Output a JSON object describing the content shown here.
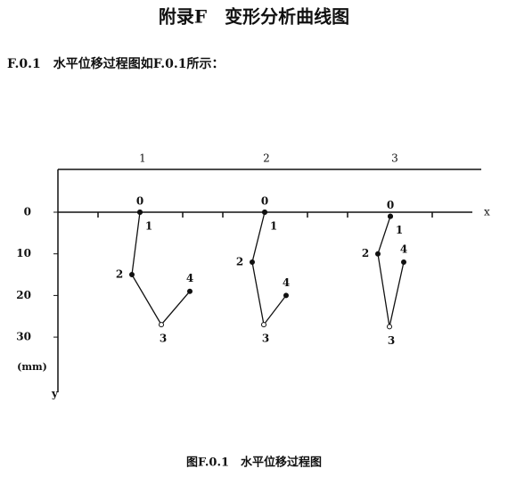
{
  "header": {
    "title": "附录F　变形分析曲线图"
  },
  "section": {
    "text": "F.0.1　水平位移过程图如F.0.1所示："
  },
  "figure": {
    "x_label": "x",
    "y_label": "y",
    "unit": "(mm)",
    "yticks": [
      0,
      10,
      20,
      30
    ],
    "groups": [
      {
        "label": "1",
        "points": [
          {
            "label": "0",
            "y": 0
          },
          {
            "label": "1",
            "y": 0
          },
          {
            "label": "2",
            "y": 15
          },
          {
            "label": "3",
            "y": 27
          },
          {
            "label": "4",
            "y": 19
          }
        ]
      },
      {
        "label": "2",
        "points": [
          {
            "label": "0",
            "y": 0
          },
          {
            "label": "1",
            "y": 0
          },
          {
            "label": "2",
            "y": 12
          },
          {
            "label": "3",
            "y": 27
          },
          {
            "label": "4",
            "y": 20
          }
        ]
      },
      {
        "label": "3",
        "points": [
          {
            "label": "0",
            "y": 1
          },
          {
            "label": "1",
            "y": 1
          },
          {
            "label": "2",
            "y": 10
          },
          {
            "label": "3",
            "y": 27.5
          },
          {
            "label": "4",
            "y": 12
          }
        ]
      }
    ],
    "caption": "图F.0.1　水平位移过程图"
  }
}
